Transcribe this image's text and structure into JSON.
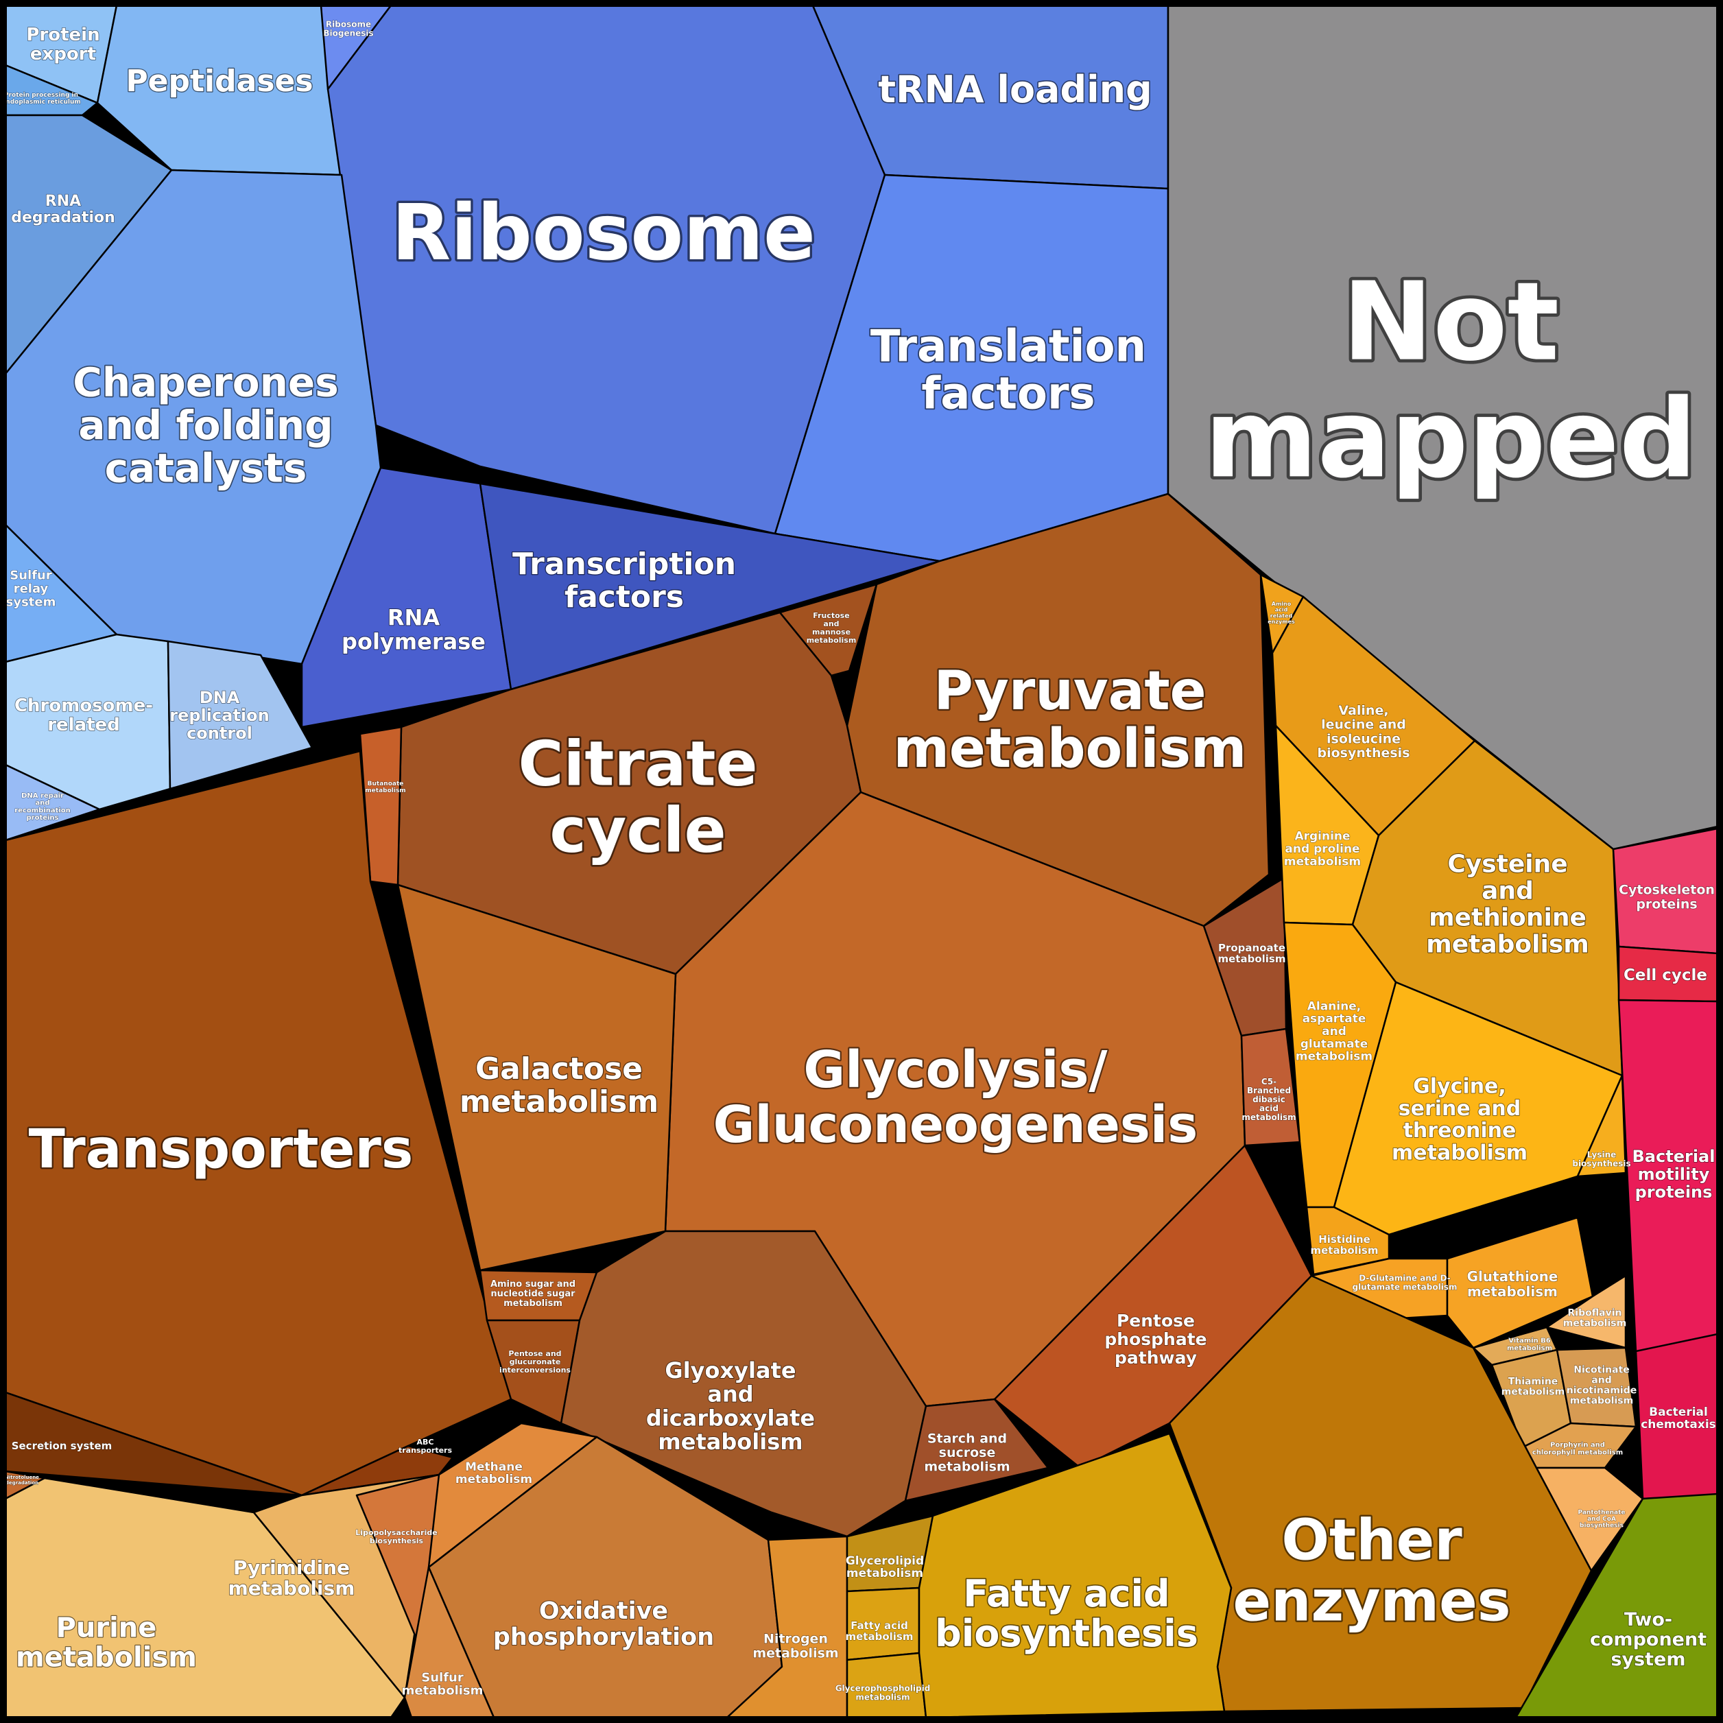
{
  "chart_data": {
    "type": "voronoi-treemap",
    "regions": [
      {
        "name": "Protein export",
        "color": "#8fc2f5",
        "size": "m"
      },
      {
        "name": "Peptidases",
        "color": "#82b7f3",
        "size": "l"
      },
      {
        "name": "Ribosome Biogenesis",
        "color": "#6c8cf0",
        "size": "xs"
      },
      {
        "name": "Protein processing in endoplasmic reticulum",
        "color": "#6aa8ea",
        "size": "xxs"
      },
      {
        "name": "RNA degradation",
        "color": "#6a9ddf",
        "size": "m"
      },
      {
        "name": "Ribosome",
        "color": "#5878de",
        "size": "xxl"
      },
      {
        "name": "tRNA loading",
        "color": "#5b80e0",
        "size": "l"
      },
      {
        "name": "Translation factors",
        "color": "#6089f0",
        "size": "xl"
      },
      {
        "name": "Not mapped",
        "color": "#8f8e8f",
        "size": "xxxl"
      },
      {
        "name": "Chaperones and folding catalysts",
        "color": "#6f9fed",
        "size": "xl"
      },
      {
        "name": "Sulfur relay system",
        "color": "#76aef4",
        "size": "s"
      },
      {
        "name": "RNA polymerase",
        "color": "#4a5fcf",
        "size": "m"
      },
      {
        "name": "Transcription factors",
        "color": "#3f56bf",
        "size": "l"
      },
      {
        "name": "Chromosome-related",
        "color": "#b1d7fa",
        "size": "m"
      },
      {
        "name": "DNA replication control",
        "color": "#a2c4f0",
        "size": "m"
      },
      {
        "name": "DNA repair and recombination proteins",
        "color": "#98bbf5",
        "size": "xxs"
      },
      {
        "name": "Fructose and mannose metabolism",
        "color": "#a3521f",
        "size": "xxs"
      },
      {
        "name": "Citrate cycle",
        "color": "#9f5223",
        "size": "xxl"
      },
      {
        "name": "Pyruvate metabolism",
        "color": "#ac5b1f",
        "size": "xl"
      },
      {
        "name": "Butanoate metabolism",
        "color": "#c7602a",
        "size": "xxs"
      },
      {
        "name": "Transporters",
        "color": "#a34f12",
        "size": "xxl"
      },
      {
        "name": "Glycolysis/ Gluconeogenesis",
        "color": "#c36828",
        "size": "xxl"
      },
      {
        "name": "Galactose metabolism",
        "color": "#c16a23",
        "size": "l"
      },
      {
        "name": "Propanoate metabolism",
        "color": "#a04f2b",
        "size": "xs"
      },
      {
        "name": "C5-Branched dibasic acid metabolism",
        "color": "#c05e35",
        "size": "xs"
      },
      {
        "name": "Amino acid related enzymes",
        "color": "#f0a21c",
        "size": "xxs"
      },
      {
        "name": "Valine, leucine and isoleucine biosynthesis",
        "color": "#e89b18",
        "size": "m"
      },
      {
        "name": "Arginine and proline metabolism",
        "color": "#fbb41b",
        "size": "s"
      },
      {
        "name": "Cysteine and methionine metabolism",
        "color": "#e09b17",
        "size": "l"
      },
      {
        "name": "Alanine, aspartate and glutamate metabolism",
        "color": "#faa90f",
        "size": "s"
      },
      {
        "name": "Glycine, serine and threonine metabolism",
        "color": "#fdb515",
        "size": "m"
      },
      {
        "name": "Lysine biosynthesis",
        "color": "#f6ae1e",
        "size": "xs"
      },
      {
        "name": "Histidine metabolism",
        "color": "#f4a31a",
        "size": "xs"
      },
      {
        "name": "D-Glutamine and D-glutamate metabolism",
        "color": "#f6a224",
        "size": "xxs"
      },
      {
        "name": "Glutathione metabolism",
        "color": "#f6a324",
        "size": "s"
      },
      {
        "name": "Riboflavin metabolism",
        "color": "#f6b76b",
        "size": "xs"
      },
      {
        "name": "Vitamin B6 metabolism",
        "color": "#e3aa58",
        "size": "xxs"
      },
      {
        "name": "Thiamine metabolism",
        "color": "#dca24f",
        "size": "xs"
      },
      {
        "name": "Nicotinate and nicotinamide metabolism",
        "color": "#d79b53",
        "size": "xs"
      },
      {
        "name": "Porphyrin and chlorophyll metabolism",
        "color": "#e2a150",
        "size": "xxs"
      },
      {
        "name": "Pantothenate and CoA biosynthesis",
        "color": "#f6b163",
        "size": "xxs"
      },
      {
        "name": "Amino sugar and nucleotide sugar metabolism",
        "color": "#b55a1f",
        "size": "xs"
      },
      {
        "name": "Pentose and glucuronate interconversions",
        "color": "#a4501b",
        "size": "xxs"
      },
      {
        "name": "Glyoxylate and dicarboxylate metabolism",
        "color": "#a35a2a",
        "size": "l"
      },
      {
        "name": "Starch and sucrose metabolism",
        "color": "#a0502a",
        "size": "s"
      },
      {
        "name": "Pentose phosphate pathway",
        "color": "#bd5422",
        "size": "m"
      },
      {
        "name": "Other enzymes",
        "color": "#bf7708",
        "size": "xxl"
      },
      {
        "name": "Cytoskeleton proteins",
        "color": "#ed3d69",
        "size": "s"
      },
      {
        "name": "Cell cycle",
        "color": "#e62a46",
        "size": "s"
      },
      {
        "name": "Bacterial motility proteins",
        "color": "#ea1c58",
        "size": "m"
      },
      {
        "name": "Bacterial chemotaxis",
        "color": "#e3164e",
        "size": "s"
      },
      {
        "name": "Two-component system",
        "color": "#799a08",
        "size": "m"
      },
      {
        "name": "Secretion system",
        "color": "#7a3508",
        "size": "xs"
      },
      {
        "name": "ABC transporters",
        "color": "#8f3c0c",
        "size": "xxs"
      },
      {
        "name": "Nitrotoluene degradation",
        "color": "#c46a30",
        "size": "xxs"
      },
      {
        "name": "Purine metabolism",
        "color": "#f1c372",
        "size": "l"
      },
      {
        "name": "Pyrimidine metabolism",
        "color": "#ecb464",
        "size": "m"
      },
      {
        "name": "Lipopolysaccharide biosynthesis",
        "color": "#d4773a",
        "size": "xs"
      },
      {
        "name": "Methane metabolism",
        "color": "#e28a3c",
        "size": "s"
      },
      {
        "name": "Oxidative phosphorylation",
        "color": "#c97b36",
        "size": "l"
      },
      {
        "name": "Sulfur metabolism",
        "color": "#da8a42",
        "size": "xs"
      },
      {
        "name": "Nitrogen metabolism",
        "color": "#e0902f",
        "size": "s"
      },
      {
        "name": "Glycerolipid metabolism",
        "color": "#c29016",
        "size": "xs"
      },
      {
        "name": "Fatty acid metabolism",
        "color": "#dca213",
        "size": "xxs"
      },
      {
        "name": "Glycerophospholipid metabolism",
        "color": "#dba314",
        "size": "xxs"
      },
      {
        "name": "Fatty acid biosynthesis",
        "color": "#d8a10b",
        "size": "l"
      }
    ]
  }
}
